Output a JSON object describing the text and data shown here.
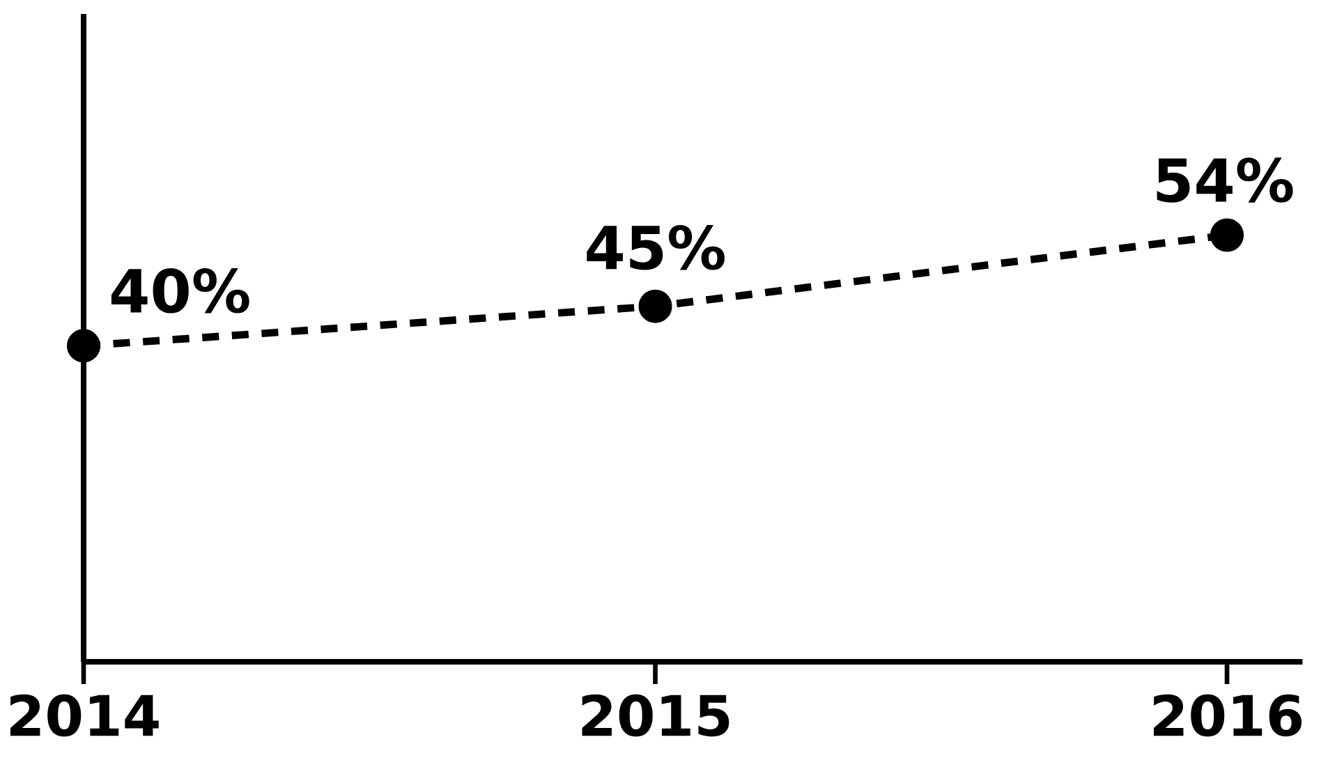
{
  "chart_data": {
    "type": "line",
    "categories": [
      "2014",
      "2015",
      "2016"
    ],
    "series": [
      {
        "color": "#000000",
        "values": [
          40,
          45,
          54
        ],
        "value_labels": [
          "40%",
          "45%",
          "54%"
        ]
      }
    ],
    "ylim": [
      0,
      82
    ],
    "tick_labels": "x",
    "marker": "circle",
    "line_style": "dashed",
    "grid": false
  }
}
